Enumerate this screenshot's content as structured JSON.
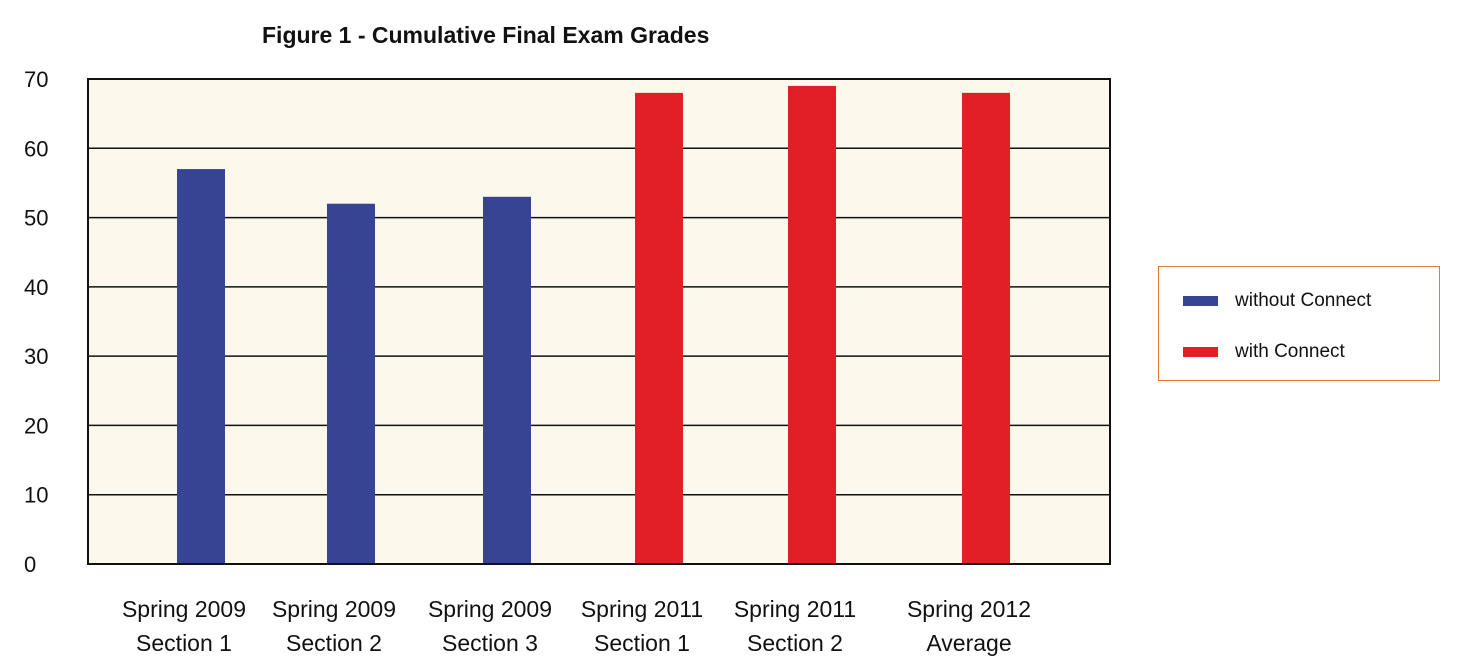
{
  "chart_data": {
    "type": "bar",
    "title": "Figure 1 - Cumulative Final Exam Grades",
    "xlabel": "",
    "ylabel": "",
    "ylim": [
      0,
      70
    ],
    "yticks": [
      "0",
      "10",
      "20",
      "30",
      "40",
      "50",
      "60",
      "70"
    ],
    "grid": true,
    "legend_position": "right",
    "background": "#fdf8ec",
    "categories": [
      [
        "Spring 2009",
        "Section 1"
      ],
      [
        "Spring 2009",
        "Section 2"
      ],
      [
        "Spring 2009",
        "Section 3"
      ],
      [
        "Spring 2011",
        "Section 1"
      ],
      [
        "Spring 2011",
        "Section 2"
      ],
      [
        "Spring 2012",
        "Average"
      ]
    ],
    "values": [
      57,
      52,
      53,
      68,
      69,
      68
    ],
    "bar_groups": [
      0,
      0,
      0,
      1,
      1,
      1
    ],
    "legend": [
      {
        "name": "without Connect",
        "color": "#374494"
      },
      {
        "name": "with Connect",
        "color": "#e21e26"
      }
    ]
  }
}
